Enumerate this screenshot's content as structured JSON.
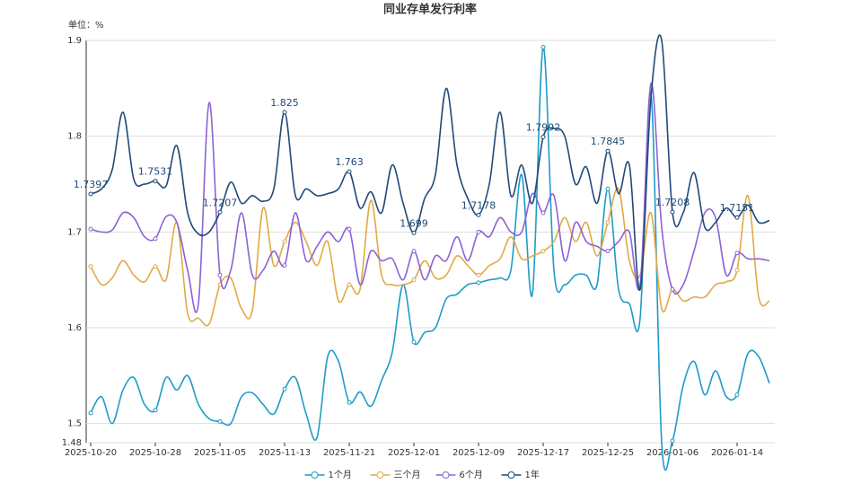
{
  "chart_data": {
    "type": "line",
    "title": "同业存单发行利率",
    "y_label": "单位：%",
    "categories": [
      "2025-10-20",
      null,
      null,
      null,
      null,
      null,
      "2025-10-28",
      null,
      null,
      null,
      null,
      null,
      "2025-11-05",
      null,
      null,
      null,
      null,
      null,
      "2025-11-13",
      null,
      null,
      null,
      null,
      null,
      "2025-11-21",
      null,
      null,
      null,
      null,
      null,
      "2025-12-01",
      null,
      null,
      null,
      null,
      null,
      "2025-12-09",
      null,
      null,
      null,
      null,
      null,
      "2025-12-17",
      null,
      null,
      null,
      null,
      null,
      "2025-12-25",
      null,
      null,
      null,
      null,
      null,
      "2026-01-06",
      null,
      null,
      null,
      null,
      null,
      "2026-01-14",
      null,
      null,
      null
    ],
    "ylim": [
      1.48,
      1.9
    ],
    "yticks": [
      1.48,
      1.5,
      1.6,
      1.7,
      1.8,
      1.9
    ],
    "grid": true,
    "legend": "bottom",
    "series": [
      {
        "name": "1个月",
        "color": "#1f9bc9",
        "values": [
          1.511,
          1.528,
          1.5,
          1.535,
          1.548,
          1.52,
          1.514,
          1.548,
          1.535,
          1.55,
          1.52,
          1.505,
          1.502,
          1.5,
          1.528,
          1.532,
          1.52,
          1.51,
          1.536,
          1.548,
          1.51,
          1.485,
          1.57,
          1.565,
          1.522,
          1.533,
          1.518,
          1.545,
          1.575,
          1.645,
          1.585,
          1.595,
          1.6,
          1.63,
          1.635,
          1.645,
          1.647,
          1.65,
          1.652,
          1.66,
          1.76,
          1.635,
          1.893,
          1.66,
          1.645,
          1.655,
          1.655,
          1.645,
          1.745,
          1.64,
          1.625,
          1.61,
          1.845,
          1.48,
          1.482,
          1.54,
          1.565,
          1.53,
          1.555,
          1.528,
          1.53,
          1.573,
          1.57,
          1.542
        ]
      },
      {
        "name": "三个月",
        "color": "#e0aa45",
        "values": [
          1.664,
          1.645,
          1.652,
          1.67,
          1.655,
          1.648,
          1.664,
          1.65,
          1.71,
          1.615,
          1.61,
          1.604,
          1.645,
          1.652,
          1.62,
          1.618,
          1.725,
          1.665,
          1.69,
          1.71,
          1.69,
          1.665,
          1.69,
          1.628,
          1.645,
          1.64,
          1.733,
          1.655,
          1.645,
          1.645,
          1.65,
          1.67,
          1.652,
          1.655,
          1.675,
          1.665,
          1.655,
          1.665,
          1.672,
          1.695,
          1.672,
          1.675,
          1.68,
          1.69,
          1.715,
          1.69,
          1.71,
          1.675,
          1.71,
          1.745,
          1.67,
          1.655,
          1.72,
          1.62,
          1.64,
          1.628,
          1.632,
          1.632,
          1.645,
          1.648,
          1.66,
          1.738,
          1.632,
          1.628
        ]
      },
      {
        "name": "6个月",
        "color": "#8b63d6",
        "values": [
          1.703,
          1.7,
          1.702,
          1.72,
          1.715,
          1.695,
          1.693,
          1.716,
          1.71,
          1.66,
          1.625,
          1.835,
          1.655,
          1.66,
          1.72,
          1.655,
          1.66,
          1.68,
          1.665,
          1.72,
          1.67,
          1.685,
          1.7,
          1.69,
          1.703,
          1.645,
          1.68,
          1.67,
          1.672,
          1.65,
          1.68,
          1.65,
          1.675,
          1.67,
          1.695,
          1.67,
          1.7,
          1.695,
          1.715,
          1.7,
          1.7,
          1.74,
          1.72,
          1.738,
          1.67,
          1.71,
          1.69,
          1.685,
          1.68,
          1.69,
          1.7,
          1.645,
          1.855,
          1.705,
          1.64,
          1.645,
          1.68,
          1.72,
          1.715,
          1.655,
          1.678,
          1.672,
          1.672,
          1.67
        ]
      },
      {
        "name": "1年",
        "color": "#1f4a78",
        "labels": true,
        "values": [
          1.7397,
          1.745,
          1.765,
          1.825,
          1.755,
          1.75,
          1.7531,
          1.748,
          1.79,
          1.72,
          1.698,
          1.7,
          1.7207,
          1.752,
          1.73,
          1.738,
          1.732,
          1.745,
          1.825,
          1.738,
          1.745,
          1.738,
          1.74,
          1.745,
          1.763,
          1.725,
          1.742,
          1.72,
          1.77,
          1.73,
          1.699,
          1.735,
          1.76,
          1.85,
          1.77,
          1.735,
          1.7178,
          1.75,
          1.825,
          1.738,
          1.77,
          1.73,
          1.7992,
          1.808,
          1.8,
          1.75,
          1.768,
          1.73,
          1.7845,
          1.74,
          1.77,
          1.64,
          1.84,
          1.9,
          1.7208,
          1.72,
          1.762,
          1.705,
          1.71,
          1.725,
          1.7151,
          1.728,
          1.71,
          1.712
        ]
      }
    ]
  }
}
